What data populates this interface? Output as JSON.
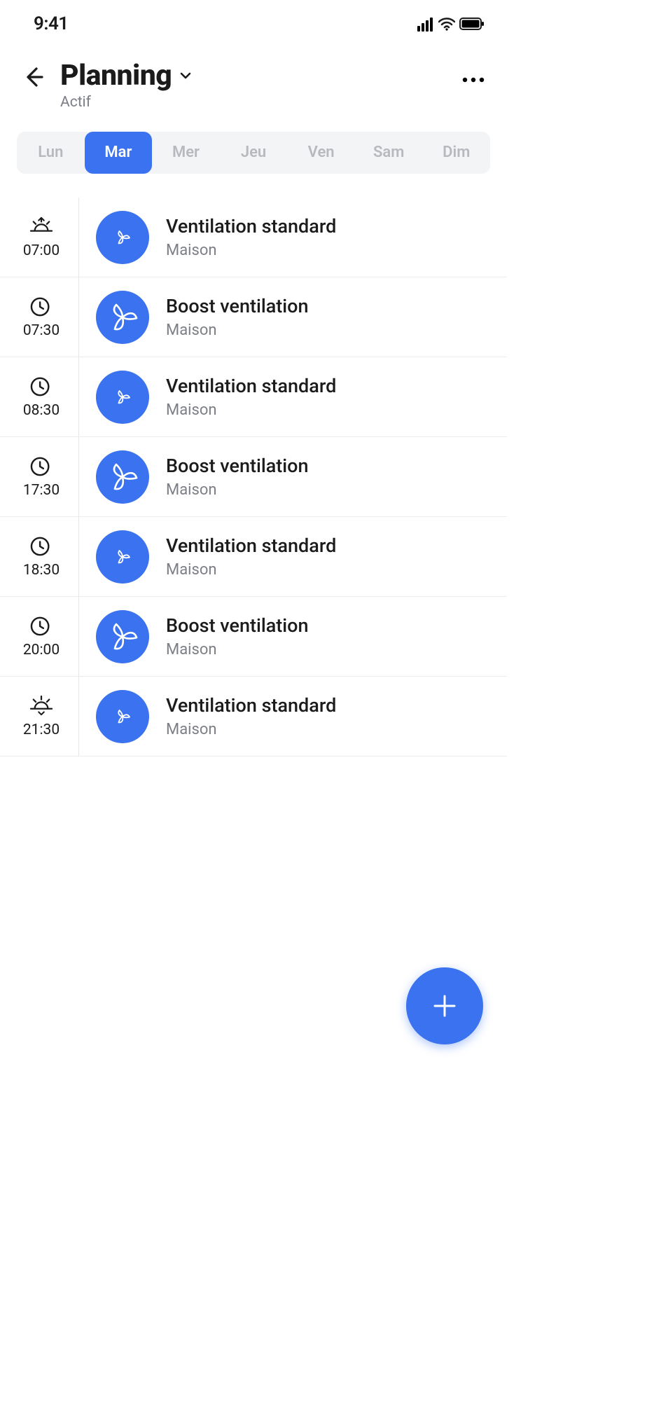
{
  "status": {
    "time": "9:41"
  },
  "header": {
    "title": "Planning",
    "subtitle": "Actif"
  },
  "colors": {
    "accent": "#3a72ef",
    "text": "#1b1b1b",
    "muted": "#7d7f87",
    "tabBg": "#f3f4f6",
    "tabInactive": "#b7b9be",
    "border": "#ececee"
  },
  "days": {
    "items": [
      {
        "label": "Lun",
        "active": false
      },
      {
        "label": "Mar",
        "active": true
      },
      {
        "label": "Mer",
        "active": false
      },
      {
        "label": "Jeu",
        "active": false
      },
      {
        "label": "Ven",
        "active": false
      },
      {
        "label": "Sam",
        "active": false
      },
      {
        "label": "Dim",
        "active": false
      }
    ]
  },
  "schedule": {
    "items": [
      {
        "time": "07:00",
        "timeIcon": "sunrise",
        "modeIcon": "fan-small",
        "title": "Ventilation standard",
        "subtitle": "Maison"
      },
      {
        "time": "07:30",
        "timeIcon": "clock",
        "modeIcon": "fan-large",
        "title": "Boost ventilation",
        "subtitle": "Maison"
      },
      {
        "time": "08:30",
        "timeIcon": "clock",
        "modeIcon": "fan-small",
        "title": "Ventilation standard",
        "subtitle": "Maison"
      },
      {
        "time": "17:30",
        "timeIcon": "clock",
        "modeIcon": "fan-large",
        "title": "Boost ventilation",
        "subtitle": "Maison"
      },
      {
        "time": "18:30",
        "timeIcon": "clock",
        "modeIcon": "fan-small",
        "title": "Ventilation standard",
        "subtitle": "Maison"
      },
      {
        "time": "20:00",
        "timeIcon": "clock",
        "modeIcon": "fan-large",
        "title": "Boost ventilation",
        "subtitle": "Maison"
      },
      {
        "time": "21:30",
        "timeIcon": "sunset",
        "modeIcon": "fan-small",
        "title": "Ventilation standard",
        "subtitle": "Maison"
      }
    ]
  }
}
